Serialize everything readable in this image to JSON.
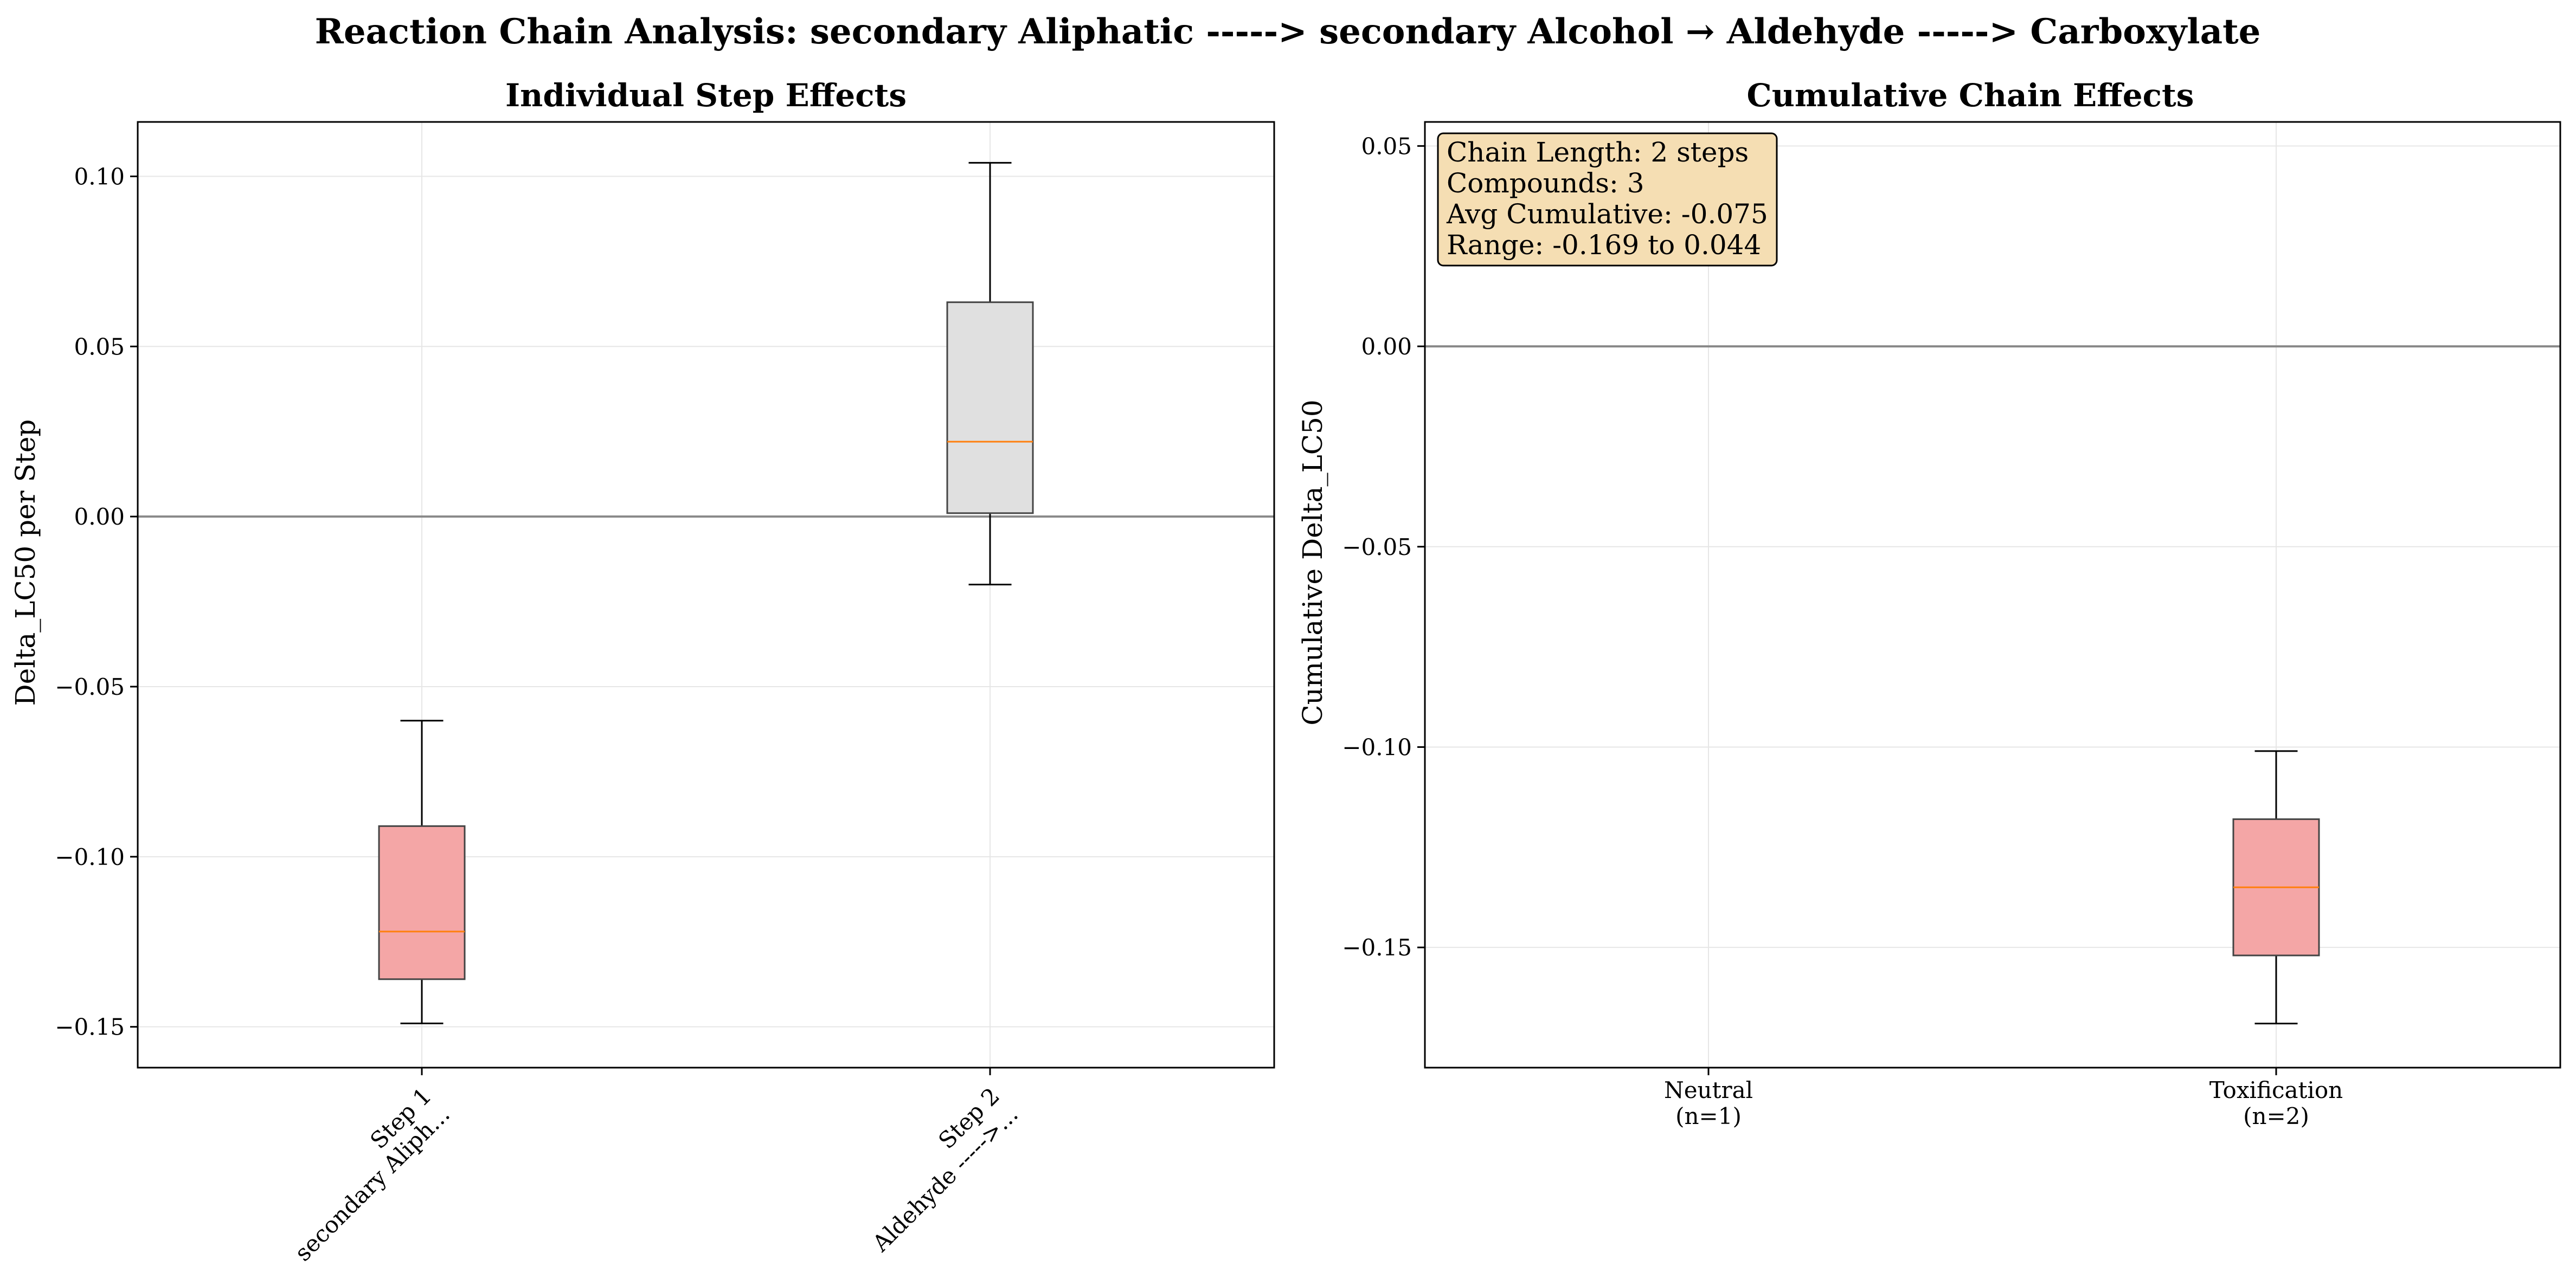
{
  "figure_title": "Reaction Chain Analysis: secondary Aliphatic -----> secondary Alcohol → Aldehyde -----> Carboxylate",
  "colors": {
    "toxification": "#f4a6a6",
    "neutral": "#e0e0e0",
    "median": "#ff7f0e",
    "zero_line": "#888888",
    "info_box_fill": "#f5deb3"
  },
  "chart_data": [
    {
      "type": "box",
      "title": "Individual Step Effects",
      "ylabel": "Delta_LC50 per Step",
      "xlabel": "",
      "ylim": [
        -0.162,
        0.116
      ],
      "yticks": [
        -0.15,
        -0.1,
        -0.05,
        0.0,
        0.05,
        0.1
      ],
      "ytick_labels": [
        "−0.15",
        "−0.10",
        "−0.05",
        "0.00",
        "0.05",
        "0.10"
      ],
      "grid": true,
      "reference_line_y": 0,
      "boxes": [
        {
          "label_line1": "Step 1",
          "label_line2": "secondary Aliph...",
          "whislo": -0.149,
          "q1": -0.136,
          "med": -0.122,
          "q3": -0.091,
          "whishi": -0.06,
          "category": "toxification"
        },
        {
          "label_line1": "Step 2",
          "label_line2": "Aldehyde ----->...",
          "whislo": -0.02,
          "q1": 0.001,
          "med": 0.022,
          "q3": 0.063,
          "whishi": 0.104,
          "category": "neutral"
        }
      ]
    },
    {
      "type": "box",
      "title": "Cumulative Chain Effects",
      "ylabel": "Cumulative Delta_LC50",
      "xlabel": "",
      "ylim": [
        -0.18,
        0.056
      ],
      "yticks": [
        -0.15,
        -0.1,
        -0.05,
        0.0,
        0.05
      ],
      "ytick_labels": [
        "−0.15",
        "−0.10",
        "−0.05",
        "0.00",
        "0.05"
      ],
      "grid": true,
      "reference_line_y": 0,
      "categories": [
        {
          "label_line1": "Neutral",
          "label_line2": "(n=1)"
        },
        {
          "label_line1": "Toxification",
          "label_line2": "(n=2)"
        }
      ],
      "boxes": [
        {
          "position": 2,
          "whislo": -0.169,
          "q1": -0.152,
          "med": -0.135,
          "q3": -0.118,
          "whishi": -0.101,
          "category": "toxification"
        }
      ],
      "info_box": {
        "placement": "top-left",
        "lines": [
          "Chain Length: 2 steps",
          "Compounds: 3",
          "Avg Cumulative: -0.075",
          "Range: -0.169 to 0.044"
        ]
      }
    }
  ]
}
